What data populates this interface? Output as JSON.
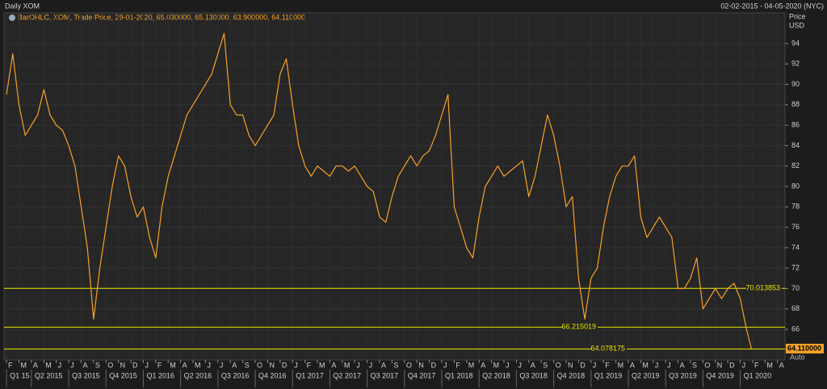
{
  "chart_data": {
    "type": "line",
    "title": "Daily XOM",
    "subtitle": "02-02-2015 - 04-05-2020 (NYC)",
    "y_axis_label": "Price",
    "y_axis_unit": "USD",
    "scale_mode": "Auto",
    "grid": true,
    "x": [
      0,
      0.5,
      1,
      1.5,
      2,
      2.5,
      3,
      3.5,
      4,
      4.5,
      5,
      5.5,
      6,
      6.5,
      7,
      7.5,
      8,
      8.5,
      9,
      9.5,
      10,
      10.5,
      11,
      11.5,
      12,
      12.5,
      13,
      13.5,
      14,
      14.5,
      15,
      15.5,
      16,
      16.5,
      17,
      17.5,
      18,
      18.5,
      19,
      19.5,
      20,
      20.5,
      21,
      21.5,
      22,
      22.5,
      23,
      23.5,
      24,
      24.5,
      25,
      25.5,
      26,
      26.5,
      27,
      27.5,
      28,
      28.5,
      29,
      29.5,
      30,
      30.5,
      31,
      31.5,
      32,
      32.5,
      33,
      33.5,
      34,
      34.5,
      35,
      35.5,
      36,
      36.5,
      37,
      37.5,
      38,
      38.5,
      39,
      39.5,
      40,
      40.5,
      41,
      41.5,
      42,
      42.5,
      43,
      43.5,
      44,
      44.5,
      45,
      45.5,
      46,
      46.5,
      47,
      47.5,
      48,
      48.5,
      49,
      49.5,
      50,
      50.5,
      51,
      51.5,
      52,
      52.5,
      53,
      53.5,
      54,
      54.5,
      55,
      55.5,
      56,
      56.5,
      57,
      57.5,
      58,
      58.5,
      59,
      59.5,
      59.9
    ],
    "series": [
      {
        "name": "BarOHLC, XOM, Trade Price, 29-01-2020, 65.030000, 65.130000, 63.900000, 64.110000",
        "color": "#f7a128",
        "values": [
          89,
          93,
          88,
          85,
          86,
          87,
          89.5,
          87,
          86,
          85.5,
          84,
          82,
          78,
          74,
          67,
          72,
          76,
          80,
          83,
          82,
          79,
          77,
          78,
          75,
          73,
          78,
          81,
          83,
          85,
          87,
          88,
          89,
          90,
          91,
          93,
          95,
          88,
          87,
          87,
          85,
          84,
          85,
          86,
          87,
          91,
          92.5,
          88,
          84,
          82,
          81,
          82,
          81.5,
          81,
          82,
          82,
          81.5,
          82,
          81,
          80,
          79.5,
          77,
          76.5,
          79,
          81,
          82,
          83,
          82,
          83,
          83.5,
          85,
          87,
          89,
          78,
          76,
          74,
          73,
          77,
          80,
          81,
          82,
          81,
          81.5,
          82,
          82.5,
          79,
          81,
          84,
          87,
          85,
          82,
          78,
          79,
          71,
          67,
          71,
          72,
          76,
          79,
          81,
          82,
          82,
          83,
          77,
          75,
          76,
          77,
          76,
          75,
          70,
          70,
          71,
          73,
          68,
          69,
          70,
          69,
          70,
          70.5,
          69,
          66,
          64.11
        ]
      }
    ],
    "xlim": [
      -0.2,
      62.6
    ],
    "xticks": [
      {
        "value": 0,
        "label": "F"
      },
      {
        "value": 1,
        "label": "M"
      },
      {
        "value": 2,
        "label": "A"
      },
      {
        "value": 3,
        "label": "M"
      },
      {
        "value": 4,
        "label": "J"
      },
      {
        "value": 5,
        "label": "J"
      },
      {
        "value": 6,
        "label": "A"
      },
      {
        "value": 7,
        "label": "S"
      },
      {
        "value": 8,
        "label": "O"
      },
      {
        "value": 9,
        "label": "N"
      },
      {
        "value": 10,
        "label": "D"
      },
      {
        "value": 11,
        "label": "J"
      },
      {
        "value": 12,
        "label": "F"
      },
      {
        "value": 13,
        "label": "M"
      },
      {
        "value": 14,
        "label": "A"
      },
      {
        "value": 15,
        "label": "M"
      },
      {
        "value": 16,
        "label": "J"
      },
      {
        "value": 17,
        "label": "J"
      },
      {
        "value": 18,
        "label": "A"
      },
      {
        "value": 19,
        "label": "S"
      },
      {
        "value": 20,
        "label": "O"
      },
      {
        "value": 21,
        "label": "N"
      },
      {
        "value": 22,
        "label": "D"
      },
      {
        "value": 23,
        "label": "J"
      },
      {
        "value": 24,
        "label": "F"
      },
      {
        "value": 25,
        "label": "M"
      },
      {
        "value": 26,
        "label": "A"
      },
      {
        "value": 27,
        "label": "M"
      },
      {
        "value": 28,
        "label": "J"
      },
      {
        "value": 29,
        "label": "J"
      },
      {
        "value": 30,
        "label": "A"
      },
      {
        "value": 31,
        "label": "S"
      },
      {
        "value": 32,
        "label": "O"
      },
      {
        "value": 33,
        "label": "N"
      },
      {
        "value": 34,
        "label": "D"
      },
      {
        "value": 35,
        "label": "J"
      },
      {
        "value": 36,
        "label": "F"
      },
      {
        "value": 37,
        "label": "M"
      },
      {
        "value": 38,
        "label": "A"
      },
      {
        "value": 39,
        "label": "M"
      },
      {
        "value": 40,
        "label": "J"
      },
      {
        "value": 41,
        "label": "J"
      },
      {
        "value": 42,
        "label": "A"
      },
      {
        "value": 43,
        "label": "S"
      },
      {
        "value": 44,
        "label": "O"
      },
      {
        "value": 45,
        "label": "N"
      },
      {
        "value": 46,
        "label": "D"
      },
      {
        "value": 47,
        "label": "J"
      },
      {
        "value": 48,
        "label": "F"
      },
      {
        "value": 49,
        "label": "M"
      },
      {
        "value": 50,
        "label": "A"
      },
      {
        "value": 51,
        "label": "M"
      },
      {
        "value": 52,
        "label": "J"
      },
      {
        "value": 53,
        "label": "J"
      },
      {
        "value": 54,
        "label": "A"
      },
      {
        "value": 55,
        "label": "S"
      },
      {
        "value": 56,
        "label": "O"
      },
      {
        "value": 57,
        "label": "N"
      },
      {
        "value": 58,
        "label": "D"
      },
      {
        "value": 59,
        "label": "J"
      },
      {
        "value": 60,
        "label": "F"
      },
      {
        "value": 61,
        "label": "M"
      },
      {
        "value": 62,
        "label": "A"
      }
    ],
    "quarter_ticks": [
      {
        "value": 0,
        "label": "Q1 15"
      },
      {
        "value": 2,
        "label": "Q2 2015"
      },
      {
        "value": 5,
        "label": "Q3 2015"
      },
      {
        "value": 8,
        "label": "Q4 2015"
      },
      {
        "value": 11,
        "label": "Q1 2016"
      },
      {
        "value": 14,
        "label": "Q2 2016"
      },
      {
        "value": 17,
        "label": "Q3 2016"
      },
      {
        "value": 20,
        "label": "Q4 2016"
      },
      {
        "value": 23,
        "label": "Q1 2017"
      },
      {
        "value": 26,
        "label": "Q2 2017"
      },
      {
        "value": 29,
        "label": "Q3 2017"
      },
      {
        "value": 32,
        "label": "Q4 2017"
      },
      {
        "value": 35,
        "label": "Q1 2018"
      },
      {
        "value": 38,
        "label": "Q2 2018"
      },
      {
        "value": 41,
        "label": "Q3 2018"
      },
      {
        "value": 44,
        "label": "Q4 2018"
      },
      {
        "value": 47,
        "label": "Q1 2019"
      },
      {
        "value": 50,
        "label": "Q2 2019"
      },
      {
        "value": 53,
        "label": "Q3 2019"
      },
      {
        "value": 56,
        "label": "Q4 2019"
      },
      {
        "value": 59,
        "label": "Q1 2020"
      }
    ],
    "ylim": [
      63,
      97
    ],
    "yticks": [
      64,
      66,
      68,
      70,
      72,
      74,
      76,
      78,
      80,
      82,
      84,
      86,
      88,
      90,
      92,
      94
    ],
    "hlines": [
      70.013853,
      66.215019,
      64.078175
    ],
    "hline_color": "#e6e600",
    "last_price": {
      "value": 64.11,
      "label": "64.110000"
    }
  }
}
